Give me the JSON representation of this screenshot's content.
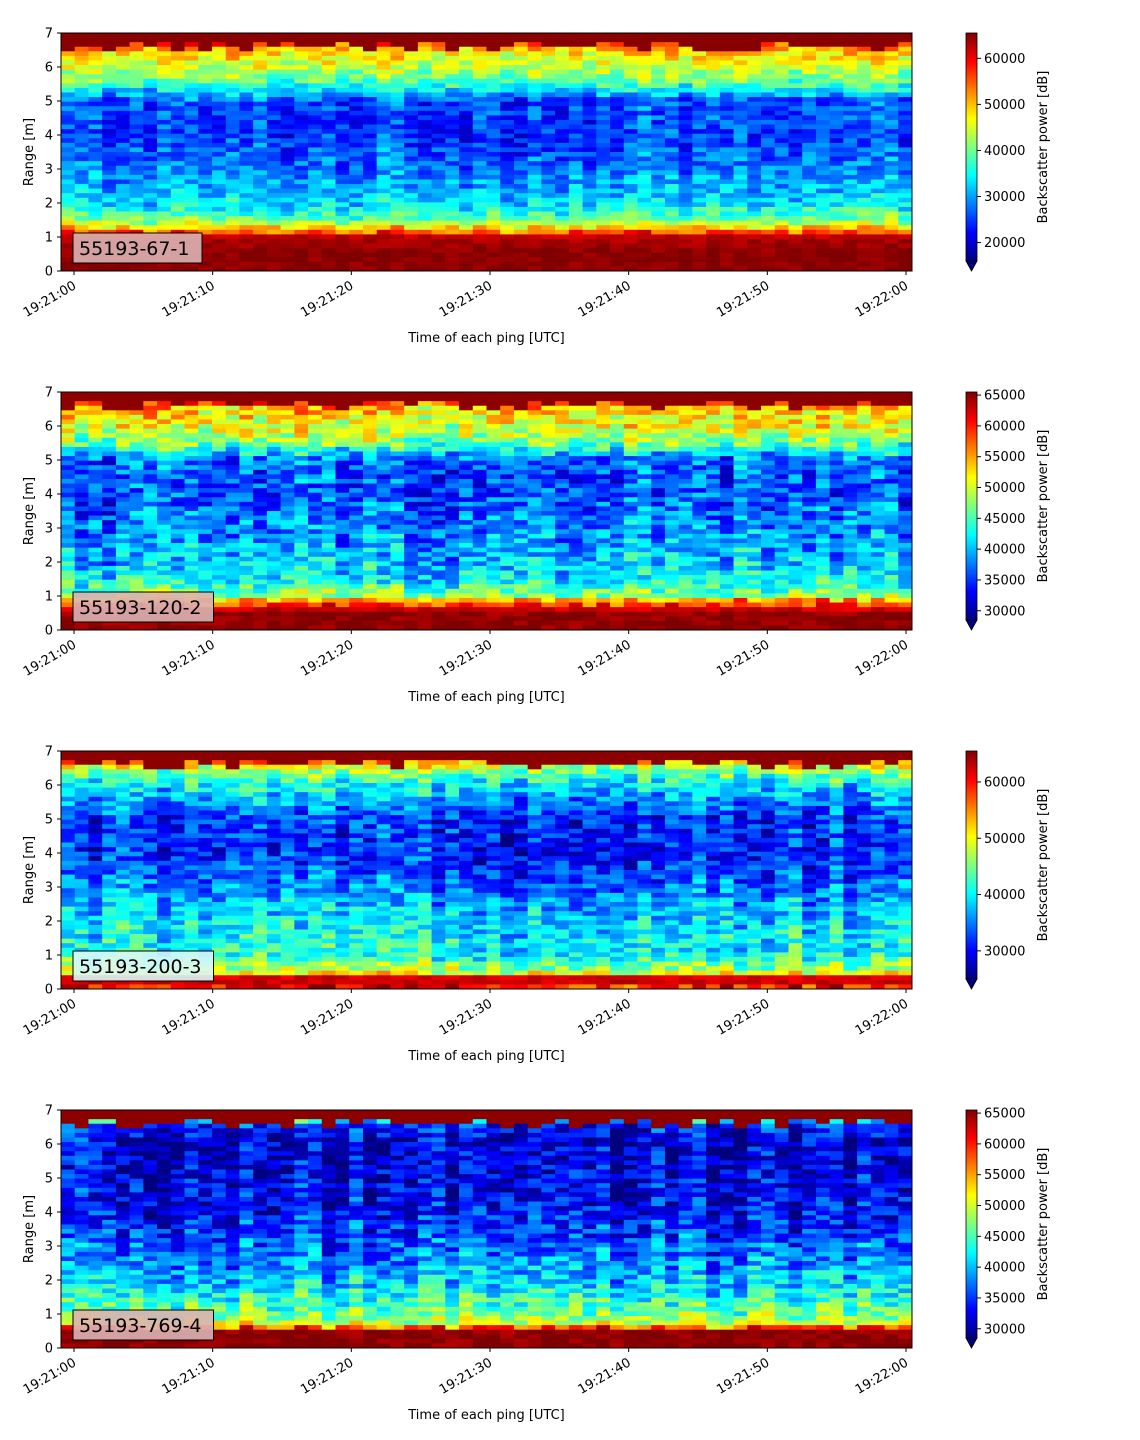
{
  "colors": {
    "colormap": "jet",
    "colormap_stops": [
      "#00007f",
      "#0000ff",
      "#007fff",
      "#00ffff",
      "#7fff7f",
      "#ffff00",
      "#ff7f00",
      "#ff0000",
      "#7f0000"
    ],
    "label_box_fill": "#dbb3b3",
    "label_box_fill_alt": "#d9f7f7"
  },
  "chart_data": [
    {
      "type": "heatmap",
      "instrument_label": "55193-67-1",
      "xlabel": "Time of each ping [UTC]",
      "ylabel": "Range [m]",
      "x_range": [
        "19:21:00",
        "19:22:00"
      ],
      "x_ticks": [
        "19:21:00",
        "19:21:10",
        "19:21:20",
        "19:21:30",
        "19:21:40",
        "19:21:50",
        "19:22:00"
      ],
      "ylim": [
        0,
        7
      ],
      "y_ticks": [
        "0",
        "1",
        "2",
        "3",
        "4",
        "5",
        "6",
        "7"
      ],
      "colorbar_label": "Backscatter power [dB]",
      "colorbar_range": [
        16000,
        65500
      ],
      "colorbar_ticks": [
        "20000",
        "30000",
        "40000",
        "50000",
        "60000"
      ],
      "colorbar_tick_values": [
        20000,
        30000,
        40000,
        50000,
        60000
      ],
      "colorbar_extend": "min",
      "profile": {
        "range_m": [
          0.2,
          0.5,
          1.0,
          1.2,
          1.5,
          2.0,
          3.0,
          4.0,
          5.0,
          5.5,
          6.0,
          6.5,
          6.9
        ],
        "mean_power": [
          65000,
          65000,
          63000,
          52000,
          40000,
          33000,
          28000,
          25000,
          26000,
          38000,
          44000,
          50000,
          65000
        ]
      }
    },
    {
      "type": "heatmap",
      "instrument_label": "55193-120-2",
      "xlabel": "Time of each ping [UTC]",
      "ylabel": "Range [m]",
      "x_range": [
        "19:21:00",
        "19:22:00"
      ],
      "x_ticks": [
        "19:21:00",
        "19:21:10",
        "19:21:20",
        "19:21:30",
        "19:21:40",
        "19:21:50",
        "19:22:00"
      ],
      "ylim": [
        0,
        7
      ],
      "y_ticks": [
        "0",
        "1",
        "2",
        "3",
        "4",
        "5",
        "6",
        "7"
      ],
      "colorbar_label": "Backscatter power [dB]",
      "colorbar_range": [
        28500,
        65500
      ],
      "colorbar_ticks": [
        "30000",
        "35000",
        "40000",
        "45000",
        "50000",
        "55000",
        "60000",
        "65000"
      ],
      "colorbar_tick_values": [
        30000,
        35000,
        40000,
        45000,
        50000,
        55000,
        60000,
        65000
      ],
      "colorbar_extend": "min",
      "profile": {
        "range_m": [
          0.2,
          0.5,
          0.8,
          1.0,
          1.5,
          2.0,
          3.0,
          4.0,
          5.0,
          5.5,
          6.0,
          6.5,
          6.9
        ],
        "mean_power": [
          65000,
          65000,
          58000,
          48000,
          42000,
          40000,
          38000,
          36000,
          36500,
          47000,
          51000,
          53000,
          65000
        ]
      }
    },
    {
      "type": "heatmap",
      "instrument_label": "55193-200-3",
      "xlabel": "Time of each ping [UTC]",
      "ylabel": "Range [m]",
      "x_range": [
        "19:21:00",
        "19:22:00"
      ],
      "x_ticks": [
        "19:21:00",
        "19:21:10",
        "19:21:20",
        "19:21:30",
        "19:21:40",
        "19:21:50",
        "19:22:00"
      ],
      "ylim": [
        0,
        7
      ],
      "y_ticks": [
        "0",
        "1",
        "2",
        "3",
        "4",
        "5",
        "6",
        "7"
      ],
      "colorbar_label": "Backscatter power [dB]",
      "colorbar_range": [
        25000,
        65500
      ],
      "colorbar_ticks": [
        "30000",
        "40000",
        "50000",
        "60000"
      ],
      "colorbar_tick_values": [
        30000,
        40000,
        50000,
        60000
      ],
      "colorbar_extend": "min",
      "profile": {
        "range_m": [
          0.1,
          0.3,
          0.5,
          1.0,
          2.0,
          3.0,
          4.0,
          5.0,
          6.0,
          6.5,
          6.9
        ],
        "mean_power": [
          60000,
          65000,
          48000,
          41000,
          39000,
          35000,
          31000,
          32000,
          40000,
          47000,
          62000
        ]
      }
    },
    {
      "type": "heatmap",
      "instrument_label": "55193-769-4",
      "xlabel": "Time of each ping [UTC]",
      "ylabel": "Range [m]",
      "x_range": [
        "19:21:00",
        "19:22:00"
      ],
      "x_ticks": [
        "19:21:00",
        "19:21:10",
        "19:21:20",
        "19:21:30",
        "19:21:40",
        "19:21:50",
        "19:22:00"
      ],
      "ylim": [
        0,
        7
      ],
      "y_ticks": [
        "0",
        "1",
        "2",
        "3",
        "4",
        "5",
        "6",
        "7"
      ],
      "colorbar_label": "Backscatter power [dB]",
      "colorbar_range": [
        28500,
        65500
      ],
      "colorbar_ticks": [
        "30000",
        "35000",
        "40000",
        "45000",
        "50000",
        "55000",
        "60000",
        "65000"
      ],
      "colorbar_tick_values": [
        30000,
        35000,
        40000,
        45000,
        50000,
        55000,
        60000,
        65000
      ],
      "colorbar_extend": "min",
      "profile": {
        "range_m": [
          0.2,
          0.5,
          0.7,
          1.0,
          1.5,
          2.0,
          3.0,
          4.0,
          5.0,
          6.0,
          6.6,
          6.9
        ],
        "mean_power": [
          65000,
          65000,
          50000,
          46000,
          43000,
          40000,
          36000,
          33000,
          32000,
          31000,
          34000,
          65000
        ]
      }
    }
  ]
}
